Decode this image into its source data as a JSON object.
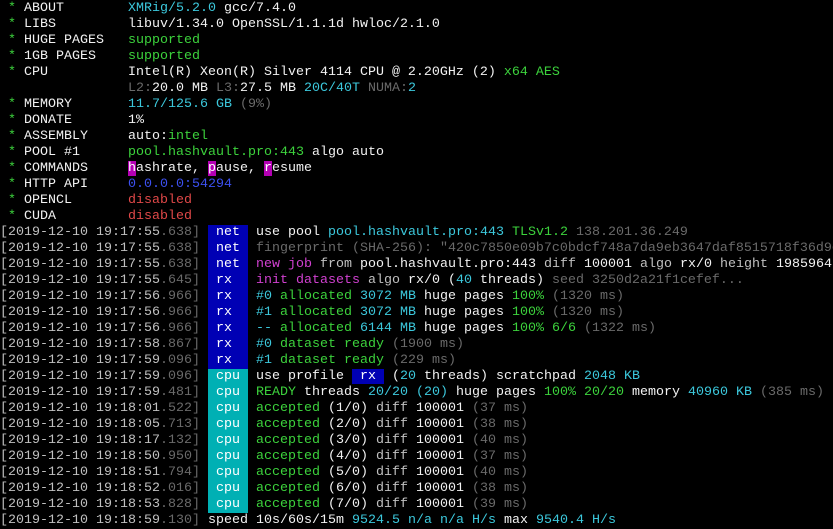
{
  "palette": {
    "w": "#f2f2f2",
    "l": "#c0c0c0",
    "d": "#6a6a6a",
    "g": "#3cd23c",
    "c": "#3cc8dc",
    "b": "#3c50f0",
    "r": "#e04848",
    "m": "#d040d0",
    "tag_net": "#0000b4",
    "tag_rx": "#0000b4",
    "tag_cpu": "#00b0b4",
    "hl_magenta": "#b400b4"
  },
  "summary": [
    {
      "label": "ABOUT",
      "segments": [
        [
          "XMRig/5.2.0",
          "c"
        ],
        [
          " gcc/7.4.0",
          "w"
        ]
      ]
    },
    {
      "label": "LIBS",
      "segments": [
        [
          "libuv/1.34.0 OpenSSL/1.1.1d hwloc/2.1.0",
          "w"
        ]
      ]
    },
    {
      "label": "HUGE PAGES",
      "segments": [
        [
          "supported",
          "g"
        ]
      ]
    },
    {
      "label": "1GB PAGES",
      "segments": [
        [
          "supported",
          "g"
        ]
      ]
    },
    {
      "label": "CPU",
      "segments": [
        [
          "Intel(R) Xeon(R) Silver 4114 CPU @ 2.20GHz (2)",
          "w"
        ],
        [
          " x64 AES",
          "g"
        ]
      ]
    },
    {
      "label": "",
      "segments": [
        [
          "L2:",
          "d"
        ],
        [
          "20.0 MB",
          "w"
        ],
        [
          " L3:",
          "d"
        ],
        [
          "27.5 MB",
          "w"
        ],
        [
          " 20C/40T",
          "c"
        ],
        [
          " NUMA:",
          "d"
        ],
        [
          "2",
          "c"
        ]
      ]
    },
    {
      "label": "MEMORY",
      "segments": [
        [
          "11.7/125.6 GB",
          "c"
        ],
        [
          " (9%)",
          "d"
        ]
      ]
    },
    {
      "label": "DONATE",
      "segments": [
        [
          "1%",
          "w"
        ]
      ]
    },
    {
      "label": "ASSEMBLY",
      "segments": [
        [
          "auto:",
          "w"
        ],
        [
          "intel",
          "g"
        ]
      ]
    },
    {
      "label": "POOL #1",
      "segments": [
        [
          "pool.hashvault.pro:443",
          "g"
        ],
        [
          " algo auto",
          "w"
        ]
      ]
    },
    {
      "label": "COMMANDS",
      "segments": [
        [
          "h",
          "hl"
        ],
        [
          "ashrate, ",
          "w"
        ],
        [
          "p",
          "hl"
        ],
        [
          "ause, ",
          "w"
        ],
        [
          "r",
          "hl"
        ],
        [
          "esume",
          "w"
        ]
      ]
    },
    {
      "label": "HTTP API",
      "segments": [
        [
          "0.0.0.0:54294",
          "b"
        ]
      ]
    },
    {
      "label": "OPENCL",
      "segments": [
        [
          "disabled",
          "r"
        ]
      ]
    },
    {
      "label": "CUDA",
      "segments": [
        [
          "disabled",
          "r"
        ]
      ]
    }
  ],
  "log": [
    {
      "ts": "[2019-12-10 19:17:55",
      "ms": ".638]",
      "tag": "net",
      "segments": [
        [
          "use pool ",
          "w"
        ],
        [
          "pool.hashvault.pro:443",
          "c"
        ],
        [
          " TLSv1.2",
          "g"
        ],
        [
          " 138.201.36.249",
          "d"
        ]
      ]
    },
    {
      "ts": "[2019-12-10 19:17:55",
      "ms": ".638]",
      "tag": "net",
      "segments": [
        [
          "fingerprint (SHA-256): \"420c7850e09b7c0bdcf748a7da9eb3647daf8515718f36d9c",
          "d"
        ]
      ]
    },
    {
      "ts": "[2019-12-10 19:17:55",
      "ms": ".638]",
      "tag": "net",
      "segments": [
        [
          "new job",
          "m"
        ],
        [
          " from ",
          "l"
        ],
        [
          "pool.hashvault.pro:443",
          "w"
        ],
        [
          " diff ",
          "l"
        ],
        [
          "100001",
          "w"
        ],
        [
          " algo ",
          "l"
        ],
        [
          "rx/0",
          "w"
        ],
        [
          " height ",
          "l"
        ],
        [
          "1985964",
          "w"
        ]
      ]
    },
    {
      "ts": "[2019-12-10 19:17:55",
      "ms": ".645]",
      "tag": "rx",
      "segments": [
        [
          "init datasets",
          "m"
        ],
        [
          " algo ",
          "l"
        ],
        [
          "rx/0",
          "w"
        ],
        [
          " (",
          "w"
        ],
        [
          "40",
          "c"
        ],
        [
          " threads)",
          "w"
        ],
        [
          " seed 3250d2a21f1cefef...",
          "d"
        ]
      ]
    },
    {
      "ts": "[2019-12-10 19:17:56",
      "ms": ".966]",
      "tag": "rx",
      "segments": [
        [
          "#0",
          "c"
        ],
        [
          " allocated ",
          "g"
        ],
        [
          "3072 MB",
          "c"
        ],
        [
          " huge pages ",
          "w"
        ],
        [
          "100%",
          "g"
        ],
        [
          " (1320 ms)",
          "d"
        ]
      ]
    },
    {
      "ts": "[2019-12-10 19:17:56",
      "ms": ".966]",
      "tag": "rx",
      "segments": [
        [
          "#1",
          "c"
        ],
        [
          " allocated ",
          "g"
        ],
        [
          "3072 MB",
          "c"
        ],
        [
          " huge pages ",
          "w"
        ],
        [
          "100%",
          "g"
        ],
        [
          " (1320 ms)",
          "d"
        ]
      ]
    },
    {
      "ts": "[2019-12-10 19:17:56",
      "ms": ".966]",
      "tag": "rx",
      "segments": [
        [
          "--",
          "c"
        ],
        [
          " allocated ",
          "g"
        ],
        [
          "6144 MB",
          "c"
        ],
        [
          " huge pages ",
          "w"
        ],
        [
          "100% 6/6",
          "g"
        ],
        [
          " (1322 ms)",
          "d"
        ]
      ]
    },
    {
      "ts": "[2019-12-10 19:17:58",
      "ms": ".867]",
      "tag": "rx",
      "segments": [
        [
          "#0",
          "c"
        ],
        [
          " dataset ready",
          "g"
        ],
        [
          " (1900 ms)",
          "d"
        ]
      ]
    },
    {
      "ts": "[2019-12-10 19:17:59",
      "ms": ".096]",
      "tag": "rx",
      "segments": [
        [
          "#1",
          "c"
        ],
        [
          " dataset ready",
          "g"
        ],
        [
          " (229 ms)",
          "d"
        ]
      ]
    },
    {
      "ts": "[2019-12-10 19:17:59",
      "ms": ".096]",
      "tag": "cpu",
      "segments": [
        [
          "use profile ",
          "w"
        ],
        [
          " rx ",
          "tagrx"
        ],
        [
          " (",
          "w"
        ],
        [
          "20",
          "c"
        ],
        [
          " threads)",
          "w"
        ],
        [
          " scratchpad ",
          "w"
        ],
        [
          "2048 KB",
          "c"
        ]
      ]
    },
    {
      "ts": "[2019-12-10 19:17:59",
      "ms": ".481]",
      "tag": "cpu",
      "segments": [
        [
          "READY",
          "g"
        ],
        [
          " threads ",
          "w"
        ],
        [
          "20/20",
          "c"
        ],
        [
          " (20)",
          "c"
        ],
        [
          " huge pages ",
          "w"
        ],
        [
          "100% 20/20",
          "g"
        ],
        [
          " memory ",
          "w"
        ],
        [
          "40960 KB",
          "c"
        ],
        [
          " (385 ms)",
          "d"
        ]
      ]
    },
    {
      "ts": "[2019-12-10 19:18:01",
      "ms": ".522]",
      "tag": "cpu",
      "segments": [
        [
          "accepted",
          "g"
        ],
        [
          " (1/0)",
          "w"
        ],
        [
          " diff ",
          "l"
        ],
        [
          "100001",
          "w"
        ],
        [
          " (37 ms)",
          "d"
        ]
      ]
    },
    {
      "ts": "[2019-12-10 19:18:05",
      "ms": ".713]",
      "tag": "cpu",
      "segments": [
        [
          "accepted",
          "g"
        ],
        [
          " (2/0)",
          "w"
        ],
        [
          " diff ",
          "l"
        ],
        [
          "100001",
          "w"
        ],
        [
          " (38 ms)",
          "d"
        ]
      ]
    },
    {
      "ts": "[2019-12-10 19:18:17",
      "ms": ".132]",
      "tag": "cpu",
      "segments": [
        [
          "accepted",
          "g"
        ],
        [
          " (3/0)",
          "w"
        ],
        [
          " diff ",
          "l"
        ],
        [
          "100001",
          "w"
        ],
        [
          " (40 ms)",
          "d"
        ]
      ]
    },
    {
      "ts": "[2019-12-10 19:18:50",
      "ms": ".950]",
      "tag": "cpu",
      "segments": [
        [
          "accepted",
          "g"
        ],
        [
          " (4/0)",
          "w"
        ],
        [
          " diff ",
          "l"
        ],
        [
          "100001",
          "w"
        ],
        [
          " (37 ms)",
          "d"
        ]
      ]
    },
    {
      "ts": "[2019-12-10 19:18:51",
      "ms": ".794]",
      "tag": "cpu",
      "segments": [
        [
          "accepted",
          "g"
        ],
        [
          " (5/0)",
          "w"
        ],
        [
          " diff ",
          "l"
        ],
        [
          "100001",
          "w"
        ],
        [
          " (40 ms)",
          "d"
        ]
      ]
    },
    {
      "ts": "[2019-12-10 19:18:52",
      "ms": ".016]",
      "tag": "cpu",
      "segments": [
        [
          "accepted",
          "g"
        ],
        [
          " (6/0)",
          "w"
        ],
        [
          " diff ",
          "l"
        ],
        [
          "100001",
          "w"
        ],
        [
          " (38 ms)",
          "d"
        ]
      ]
    },
    {
      "ts": "[2019-12-10 19:18:53",
      "ms": ".828]",
      "tag": "cpu",
      "segments": [
        [
          "accepted",
          "g"
        ],
        [
          " (7/0)",
          "w"
        ],
        [
          " diff ",
          "l"
        ],
        [
          "100001",
          "w"
        ],
        [
          " (39 ms)",
          "d"
        ]
      ]
    },
    {
      "ts": "[2019-12-10 19:18:59",
      "ms": ".130]",
      "tag": "",
      "segments": [
        [
          "speed",
          "w"
        ],
        [
          " 10s/60s/15m ",
          "w"
        ],
        [
          "9524.5",
          "c"
        ],
        [
          " n/a n/a H/s",
          "c"
        ],
        [
          " max ",
          "w"
        ],
        [
          "9540.4 H/s",
          "c"
        ]
      ]
    }
  ]
}
